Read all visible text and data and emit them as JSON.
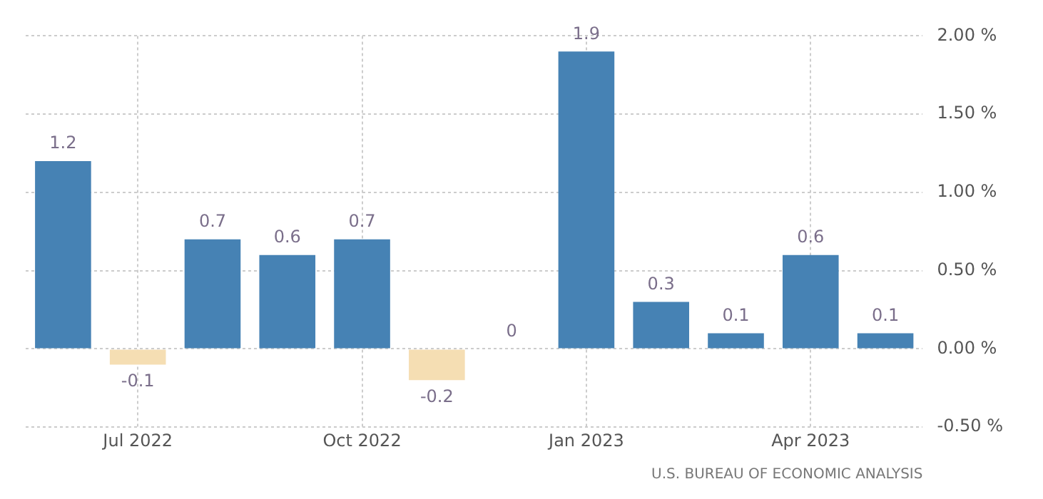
{
  "chart_data": {
    "type": "bar",
    "categories": [
      null,
      "Jul 2022",
      null,
      null,
      "Oct 2022",
      null,
      null,
      "Jan 2023",
      null,
      null,
      "Apr 2023",
      null
    ],
    "values": [
      1.2,
      -0.1,
      0.7,
      0.6,
      0.7,
      -0.2,
      0,
      1.9,
      0.3,
      0.1,
      0.6,
      0.1
    ],
    "colors": [
      "#4682b4",
      "#f5deb3",
      "#4682b4",
      "#4682b4",
      "#4682b4",
      "#f5deb3",
      "#4682b4",
      "#4682b4",
      "#4682b4",
      "#4682b4",
      "#4682b4",
      "#4682b4"
    ],
    "ylim": [
      -0.5,
      2.0
    ],
    "yticks": [
      {
        "value": -0.5,
        "label": "-0.50 %"
      },
      {
        "value": 0,
        "label": "0.00 %"
      },
      {
        "value": 0.5,
        "label": "0.50 %"
      },
      {
        "value": 1,
        "label": "1.00 %"
      },
      {
        "value": 1.5,
        "label": "1.50 %"
      },
      {
        "value": 2,
        "label": "2.00 %"
      }
    ],
    "grid": true,
    "legend": false,
    "data_labels": true,
    "annotations": [
      "U.S. BUREAU OF ECONOMIC ANALYSIS"
    ]
  }
}
